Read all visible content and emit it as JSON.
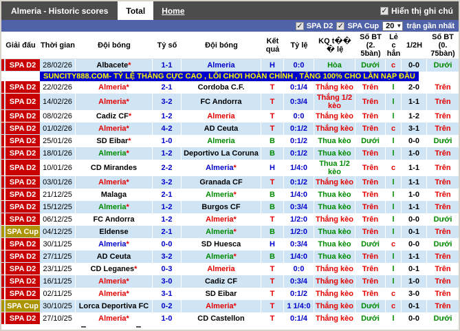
{
  "window": {
    "title": "Almeria - Historic scores",
    "tabs": [
      {
        "label": "Total",
        "active": true
      },
      {
        "label": "Home",
        "active": false
      }
    ],
    "note_toggle_label": "Hiển thị ghi chú",
    "note_toggle_checked": "✓"
  },
  "filter_bar": {
    "league_checkboxes": [
      {
        "label": "SPA D2",
        "checked": "✓"
      },
      {
        "label": "SPA Cup",
        "checked": "✓"
      }
    ],
    "count_selected": "20",
    "count_suffix": "trận gần nhất"
  },
  "banner": {
    "text": "SUNCITY888.COM- TỶ LỆ THẮNG CỰC CAO , LỐI CHƠI HOÀN CHỈNH , TẶNG 100% CHO LẦN NẠP ĐẦU",
    "bg": "#0000cc",
    "fg": "#ffff00"
  },
  "colors": {
    "league_d2": "#c80000",
    "league_cup": "#ab9400",
    "filter_bar": "#5163a8",
    "row_alt": "#cfe4f4",
    "win": "#e60000",
    "loss": "#008a00",
    "draw": "#0000cc"
  },
  "table": {
    "headers": [
      {
        "key": "league",
        "label": "Giải đấu"
      },
      {
        "key": "date",
        "label": "Thời gian"
      },
      {
        "key": "home",
        "label": "Đội bóng"
      },
      {
        "key": "score",
        "label": "Tỷ số"
      },
      {
        "key": "away",
        "label": "Đội bóng"
      },
      {
        "key": "result",
        "label": "Kết quả"
      },
      {
        "key": "odds",
        "label": "Tỷ lệ"
      },
      {
        "key": "kq",
        "label": "KQ t�� � lệ"
      },
      {
        "key": "bt25",
        "label": "Số BT (2. 5bàn)"
      },
      {
        "key": "oe",
        "label": "Lẻ c hẳn"
      },
      {
        "key": "ht",
        "label": "1/2H"
      },
      {
        "key": "bt075",
        "label": "Số BT (0. 75bàn)"
      }
    ],
    "rows": [
      {
        "league": "SPA D2",
        "date": "28/02/26",
        "home": "Albacete",
        "home_star": true,
        "home_color": "black",
        "score": "1-1",
        "away": "Almeria",
        "away_star": false,
        "away_color": "blue",
        "result": "H",
        "result_color": "blue",
        "odds": "0:0",
        "kq": "Hòa",
        "kq_color": "green",
        "bt25": "Dưới",
        "bt25_color": "green",
        "oe": "c",
        "oe_color": "red",
        "ht": "0-0",
        "bt075": "Dưới",
        "bt075_color": "green"
      },
      {
        "league": "SPA D2",
        "date": "22/02/26",
        "home": "Almeria",
        "home_star": true,
        "home_color": "red",
        "score": "2-1",
        "away": "Cordoba C.F.",
        "away_star": false,
        "away_color": "black",
        "result": "T",
        "result_color": "red",
        "odds": "0:1/4",
        "kq": "Thắng kèo",
        "kq_color": "red",
        "bt25": "Trên",
        "bt25_color": "red",
        "oe": "l",
        "oe_color": "green",
        "ht": "2-0",
        "bt075": "Trên",
        "bt075_color": "red"
      },
      {
        "league": "SPA D2",
        "date": "14/02/26",
        "home": "Almeria",
        "home_star": true,
        "home_color": "red",
        "score": "3-2",
        "away": "FC Andorra",
        "away_star": false,
        "away_color": "black",
        "result": "T",
        "result_color": "red",
        "odds": "0:3/4",
        "kq": "Thắng 1/2 kèo",
        "kq_color": "red",
        "bt25": "Trên",
        "bt25_color": "red",
        "oe": "l",
        "oe_color": "green",
        "ht": "1-1",
        "bt075": "Trên",
        "bt075_color": "red"
      },
      {
        "league": "SPA D2",
        "date": "08/02/26",
        "home": "Cadiz CF",
        "home_star": true,
        "home_color": "black",
        "score": "1-2",
        "away": "Almeria",
        "away_star": false,
        "away_color": "red",
        "result": "T",
        "result_color": "red",
        "odds": "0:0",
        "kq": "Thắng kèo",
        "kq_color": "red",
        "bt25": "Trên",
        "bt25_color": "red",
        "oe": "l",
        "oe_color": "green",
        "ht": "1-2",
        "bt075": "Trên",
        "bt075_color": "red"
      },
      {
        "league": "SPA D2",
        "date": "01/02/26",
        "home": "Almeria",
        "home_star": true,
        "home_color": "red",
        "score": "4-2",
        "away": "AD Ceuta",
        "away_star": false,
        "away_color": "black",
        "result": "T",
        "result_color": "red",
        "odds": "0:1/2",
        "kq": "Thắng kèo",
        "kq_color": "red",
        "bt25": "Trên",
        "bt25_color": "red",
        "oe": "c",
        "oe_color": "red",
        "ht": "3-1",
        "bt075": "Trên",
        "bt075_color": "red"
      },
      {
        "league": "SPA D2",
        "date": "25/01/26",
        "home": "SD Eibar",
        "home_star": true,
        "home_color": "black",
        "score": "1-0",
        "away": "Almeria",
        "away_star": false,
        "away_color": "green",
        "result": "B",
        "result_color": "green",
        "odds": "0:1/2",
        "kq": "Thua kèo",
        "kq_color": "green",
        "bt25": "Dưới",
        "bt25_color": "green",
        "oe": "l",
        "oe_color": "green",
        "ht": "0-0",
        "bt075": "Dưới",
        "bt075_color": "green"
      },
      {
        "league": "SPA D2",
        "date": "18/01/26",
        "home": "Almeria",
        "home_star": true,
        "home_color": "green",
        "score": "1-2",
        "away": "Deportivo La Coruna",
        "away_star": false,
        "away_color": "black",
        "result": "B",
        "result_color": "green",
        "odds": "0:1/2",
        "kq": "Thua kèo",
        "kq_color": "green",
        "bt25": "Trên",
        "bt25_color": "red",
        "oe": "l",
        "oe_color": "green",
        "ht": "1-0",
        "bt075": "Trên",
        "bt075_color": "red"
      },
      {
        "league": "SPA D2",
        "date": "10/01/26",
        "home": "CD Mirandes",
        "home_star": false,
        "home_color": "black",
        "score": "2-2",
        "away": "Almeria",
        "away_star": true,
        "away_color": "blue",
        "result": "H",
        "result_color": "blue",
        "odds": "1/4:0",
        "kq": "Thua 1/2 kèo",
        "kq_color": "green",
        "bt25": "Trên",
        "bt25_color": "red",
        "oe": "c",
        "oe_color": "red",
        "ht": "1-1",
        "bt075": "Trên",
        "bt075_color": "red"
      },
      {
        "league": "SPA D2",
        "date": "03/01/26",
        "home": "Almeria",
        "home_star": true,
        "home_color": "red",
        "score": "3-2",
        "away": "Granada CF",
        "away_star": false,
        "away_color": "black",
        "result": "T",
        "result_color": "red",
        "odds": "0:1/2",
        "kq": "Thắng kèo",
        "kq_color": "red",
        "bt25": "Trên",
        "bt25_color": "red",
        "oe": "l",
        "oe_color": "green",
        "ht": "1-1",
        "bt075": "Trên",
        "bt075_color": "red"
      },
      {
        "league": "SPA D2",
        "date": "21/12/25",
        "home": "Malaga",
        "home_star": false,
        "home_color": "black",
        "score": "2-1",
        "away": "Almeria",
        "away_star": true,
        "away_color": "green",
        "result": "B",
        "result_color": "green",
        "odds": "1/4:0",
        "kq": "Thua kèo",
        "kq_color": "green",
        "bt25": "Trên",
        "bt25_color": "red",
        "oe": "l",
        "oe_color": "green",
        "ht": "1-0",
        "bt075": "Trên",
        "bt075_color": "red"
      },
      {
        "league": "SPA D2",
        "date": "15/12/25",
        "home": "Almeria",
        "home_star": true,
        "home_color": "green",
        "score": "1-2",
        "away": "Burgos CF",
        "away_star": false,
        "away_color": "black",
        "result": "B",
        "result_color": "green",
        "odds": "0:3/4",
        "kq": "Thua kèo",
        "kq_color": "green",
        "bt25": "Trên",
        "bt25_color": "red",
        "oe": "l",
        "oe_color": "green",
        "ht": "1-1",
        "bt075": "Trên",
        "bt075_color": "red"
      },
      {
        "league": "SPA D2",
        "date": "06/12/25",
        "home": "FC Andorra",
        "home_star": false,
        "home_color": "black",
        "score": "1-2",
        "away": "Almeria",
        "away_star": true,
        "away_color": "red",
        "result": "T",
        "result_color": "red",
        "odds": "1/2:0",
        "kq": "Thắng kèo",
        "kq_color": "red",
        "bt25": "Trên",
        "bt25_color": "red",
        "oe": "l",
        "oe_color": "green",
        "ht": "0-0",
        "bt075": "Dưới",
        "bt075_color": "green"
      },
      {
        "league": "SPA Cup",
        "date": "04/12/25",
        "home": "Eldense",
        "home_star": false,
        "home_color": "black",
        "score": "2-1",
        "away": "Almeria",
        "away_star": true,
        "away_color": "green",
        "result": "B",
        "result_color": "green",
        "odds": "1/2:0",
        "kq": "Thua kèo",
        "kq_color": "green",
        "bt25": "Trên",
        "bt25_color": "red",
        "oe": "l",
        "oe_color": "green",
        "ht": "0-1",
        "bt075": "Trên",
        "bt075_color": "red"
      },
      {
        "league": "SPA D2",
        "date": "30/11/25",
        "home": "Almeria",
        "home_star": true,
        "home_color": "blue",
        "score": "0-0",
        "away": "SD Huesca",
        "away_star": false,
        "away_color": "black",
        "result": "H",
        "result_color": "blue",
        "odds": "0:3/4",
        "kq": "Thua kèo",
        "kq_color": "green",
        "bt25": "Dưới",
        "bt25_color": "green",
        "oe": "c",
        "oe_color": "red",
        "ht": "0-0",
        "bt075": "Dưới",
        "bt075_color": "green"
      },
      {
        "league": "SPA D2",
        "date": "27/11/25",
        "home": "AD Ceuta",
        "home_star": false,
        "home_color": "black",
        "score": "3-2",
        "away": "Almeria",
        "away_star": true,
        "away_color": "green",
        "result": "B",
        "result_color": "green",
        "odds": "1/4:0",
        "kq": "Thua kèo",
        "kq_color": "green",
        "bt25": "Trên",
        "bt25_color": "red",
        "oe": "l",
        "oe_color": "green",
        "ht": "1-1",
        "bt075": "Trên",
        "bt075_color": "red"
      },
      {
        "league": "SPA D2",
        "date": "23/11/25",
        "home": "CD Leganes",
        "home_star": true,
        "home_color": "black",
        "score": "0-3",
        "away": "Almeria",
        "away_star": false,
        "away_color": "red",
        "result": "T",
        "result_color": "red",
        "odds": "0:0",
        "kq": "Thắng kèo",
        "kq_color": "red",
        "bt25": "Trên",
        "bt25_color": "red",
        "oe": "l",
        "oe_color": "green",
        "ht": "0-1",
        "bt075": "Trên",
        "bt075_color": "red"
      },
      {
        "league": "SPA D2",
        "date": "16/11/25",
        "home": "Almeria",
        "home_star": true,
        "home_color": "red",
        "score": "3-0",
        "away": "Cadiz CF",
        "away_star": false,
        "away_color": "black",
        "result": "T",
        "result_color": "red",
        "odds": "0:3/4",
        "kq": "Thắng kèo",
        "kq_color": "red",
        "bt25": "Trên",
        "bt25_color": "red",
        "oe": "l",
        "oe_color": "green",
        "ht": "1-0",
        "bt075": "Trên",
        "bt075_color": "red"
      },
      {
        "league": "SPA D2",
        "date": "02/11/25",
        "home": "Almeria",
        "home_star": true,
        "home_color": "red",
        "score": "3-1",
        "away": "SD Eibar",
        "away_star": false,
        "away_color": "black",
        "result": "T",
        "result_color": "red",
        "odds": "0:1/2",
        "kq": "Thắng kèo",
        "kq_color": "red",
        "bt25": "Trên",
        "bt25_color": "red",
        "oe": "c",
        "oe_color": "red",
        "ht": "3-0",
        "bt075": "Trên",
        "bt075_color": "red"
      },
      {
        "league": "SPA Cup",
        "date": "30/10/25",
        "home": "Lorca Deportiva FC",
        "home_star": false,
        "home_color": "black",
        "score": "0-2",
        "away": "Almeria",
        "away_star": true,
        "away_color": "red",
        "result": "T",
        "result_color": "red",
        "odds": "1 1/4:0",
        "kq": "Thắng kèo",
        "kq_color": "red",
        "bt25": "Dưới",
        "bt25_color": "green",
        "oe": "c",
        "oe_color": "red",
        "ht": "0-1",
        "bt075": "Trên",
        "bt075_color": "red"
      },
      {
        "league": "SPA D2",
        "date": "27/10/25",
        "home": "Almeria",
        "home_star": true,
        "home_color": "red",
        "score": "1-0",
        "away": "CD Castellon",
        "away_star": false,
        "away_color": "black",
        "result": "T",
        "result_color": "red",
        "odds": "0:1/4",
        "kq": "Thắng kèo",
        "kq_color": "red",
        "bt25": "Dưới",
        "bt25_color": "green",
        "oe": "l",
        "oe_color": "green",
        "ht": "0-0",
        "bt075": "Dưới",
        "bt075_color": "green"
      }
    ]
  }
}
